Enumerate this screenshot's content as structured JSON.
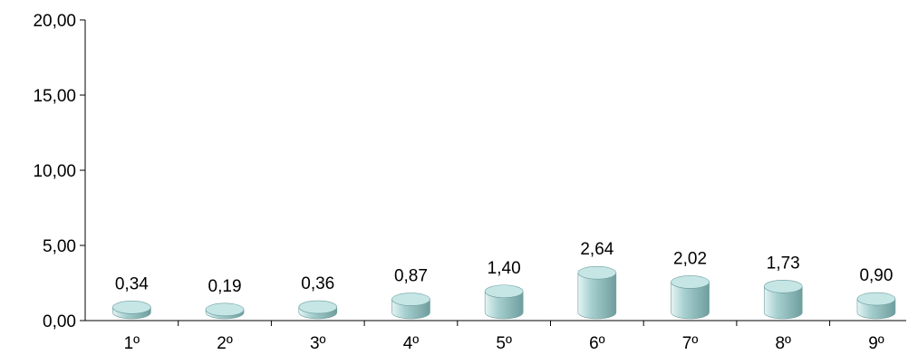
{
  "chart_data": {
    "type": "bar",
    "categories": [
      "1º",
      "2º",
      "3º",
      "4º",
      "5º",
      "6º",
      "7º",
      "8º",
      "9º"
    ],
    "values": [
      0.34,
      0.19,
      0.36,
      0.87,
      1.4,
      2.64,
      2.02,
      1.73,
      0.9
    ],
    "value_labels": [
      "0,34",
      "0,19",
      "0,36",
      "0,87",
      "1,40",
      "2,64",
      "2,02",
      "1,73",
      "0,90"
    ],
    "y_ticks": [
      0,
      5,
      10,
      15,
      20
    ],
    "y_tick_labels": [
      "0,00",
      "5,00",
      "10,00",
      "15,00",
      "20,00"
    ],
    "ylim": [
      0,
      20
    ],
    "title": "",
    "xlabel": "",
    "ylabel": "",
    "grid": false,
    "legend": "none",
    "bar_style": "3d-cylinder",
    "colors": {
      "bar_light": "#e4f4f4",
      "bar_mid": "#a6cfcf",
      "bar_dark": "#6f9d9d",
      "bar_top": "#c6e6e6",
      "axis": "#000000"
    }
  }
}
